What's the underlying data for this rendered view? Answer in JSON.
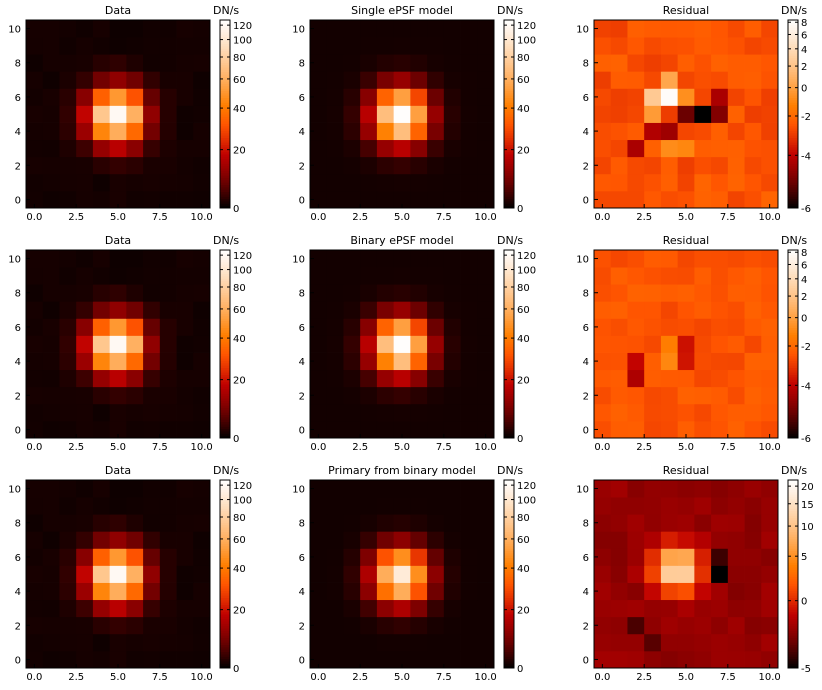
{
  "figure": {
    "colormap": "gist_heat",
    "grid": false,
    "layout": "3 rows x 3 columns"
  },
  "chart_data": [
    {
      "type": "heatmap",
      "title": "Data",
      "colorbar_label": "DN/s",
      "colorbar_scale": "asinh",
      "vmin": 0,
      "vmax": 128,
      "colorbar_ticks": [
        0,
        20,
        40,
        60,
        80,
        100,
        120
      ],
      "x_ticks": [
        "0.0",
        "2.5",
        "5.0",
        "7.5",
        "10.0"
      ],
      "y_ticks": [
        "0",
        "2",
        "4",
        "6",
        "8",
        "10"
      ],
      "xlim": [
        -0.5,
        10.5
      ],
      "ylim": [
        -0.5,
        10.5
      ],
      "field": "data",
      "seed": 11
    },
    {
      "type": "heatmap",
      "title": "Single ePSF model",
      "colorbar_label": "DN/s",
      "colorbar_scale": "asinh",
      "vmin": 0,
      "vmax": 128,
      "colorbar_ticks": [
        0,
        20,
        40,
        60,
        80,
        100,
        120
      ],
      "x_ticks": [
        "0.0",
        "2.5",
        "5.0",
        "7.5",
        "10.0"
      ],
      "y_ticks": [
        "0",
        "2",
        "4",
        "6",
        "8",
        "10"
      ],
      "xlim": [
        -0.5,
        10.5
      ],
      "ylim": [
        -0.5,
        10.5
      ],
      "field": "model",
      "seed": 0
    },
    {
      "type": "heatmap",
      "title": "Residual",
      "colorbar_label": "DN/s",
      "colorbar_scale": "asinh",
      "vmin": -6,
      "vmax": 8.4,
      "colorbar_ticks": [
        -6,
        -4,
        -2,
        0,
        2,
        4,
        6,
        8
      ],
      "x_ticks": [
        "0.0",
        "2.5",
        "5.0",
        "7.5",
        "10.0"
      ],
      "y_ticks": [
        "0",
        "2",
        "4",
        "6",
        "8",
        "10"
      ],
      "xlim": [
        -0.5,
        10.5
      ],
      "ylim": [
        -0.5,
        10.5
      ],
      "field": "residual_single",
      "seed": 21
    },
    {
      "type": "heatmap",
      "title": "Data",
      "colorbar_label": "DN/s",
      "colorbar_scale": "asinh",
      "vmin": 0,
      "vmax": 128,
      "colorbar_ticks": [
        0,
        20,
        40,
        60,
        80,
        100,
        120
      ],
      "x_ticks": [
        "0.0",
        "2.5",
        "5.0",
        "7.5",
        "10.0"
      ],
      "y_ticks": [
        "0",
        "2",
        "4",
        "6",
        "8",
        "10"
      ],
      "xlim": [
        -0.5,
        10.5
      ],
      "ylim": [
        -0.5,
        10.5
      ],
      "field": "data",
      "seed": 11
    },
    {
      "type": "heatmap",
      "title": "Binary ePSF model",
      "colorbar_label": "DN/s",
      "colorbar_scale": "asinh",
      "vmin": 0,
      "vmax": 128,
      "colorbar_ticks": [
        0,
        20,
        40,
        60,
        80,
        100,
        120
      ],
      "x_ticks": [
        "0.0",
        "2.5",
        "5.0",
        "7.5",
        "10.0"
      ],
      "y_ticks": [
        "0",
        "2",
        "4",
        "6",
        "8",
        "10"
      ],
      "xlim": [
        -0.5,
        10.5
      ],
      "ylim": [
        -0.5,
        10.5
      ],
      "field": "model",
      "seed": 0
    },
    {
      "type": "heatmap",
      "title": "Residual",
      "colorbar_label": "DN/s",
      "colorbar_scale": "asinh",
      "vmin": -6,
      "vmax": 8.4,
      "colorbar_ticks": [
        -6,
        -4,
        -2,
        0,
        2,
        4,
        6,
        8
      ],
      "x_ticks": [
        "0.0",
        "2.5",
        "5.0",
        "7.5",
        "10.0"
      ],
      "y_ticks": [
        "0",
        "2",
        "4",
        "6",
        "8",
        "10"
      ],
      "xlim": [
        -0.5,
        10.5
      ],
      "ylim": [
        -0.5,
        10.5
      ],
      "field": "residual_binary",
      "seed": 33
    },
    {
      "type": "heatmap",
      "title": "Data",
      "colorbar_label": "DN/s",
      "colorbar_scale": "asinh",
      "vmin": 0,
      "vmax": 128,
      "colorbar_ticks": [
        0,
        20,
        40,
        60,
        80,
        100,
        120
      ],
      "x_ticks": [
        "0.0",
        "2.5",
        "5.0",
        "7.5",
        "10.0"
      ],
      "y_ticks": [
        "0",
        "2",
        "4",
        "6",
        "8",
        "10"
      ],
      "xlim": [
        -0.5,
        10.5
      ],
      "ylim": [
        -0.5,
        10.5
      ],
      "field": "data",
      "seed": 11
    },
    {
      "type": "heatmap",
      "title": "Primary from binary model",
      "colorbar_label": "DN/s",
      "colorbar_scale": "asinh",
      "vmin": 0,
      "vmax": 128,
      "colorbar_ticks": [
        0,
        20,
        40,
        60,
        80,
        100,
        120
      ],
      "x_ticks": [
        "0.0",
        "2.5",
        "5.0",
        "7.5",
        "10.0"
      ],
      "y_ticks": [
        "0",
        "2",
        "4",
        "6",
        "8",
        "10"
      ],
      "xlim": [
        -0.5,
        10.5
      ],
      "ylim": [
        -0.5,
        10.5
      ],
      "field": "primary",
      "seed": 0
    },
    {
      "type": "heatmap",
      "title": "Residual",
      "colorbar_label": "DN/s",
      "colorbar_scale": "asinh",
      "vmin": -5,
      "vmax": 22,
      "colorbar_ticks": [
        -5,
        0,
        5,
        10,
        15,
        20
      ],
      "x_ticks": [
        "0.0",
        "2.5",
        "5.0",
        "7.5",
        "10.0"
      ],
      "y_ticks": [
        "0",
        "2",
        "4",
        "6",
        "8",
        "10"
      ],
      "xlim": [
        -0.5,
        10.5
      ],
      "ylim": [
        -0.5,
        10.5
      ],
      "field": "residual_primary",
      "seed": 47
    }
  ]
}
